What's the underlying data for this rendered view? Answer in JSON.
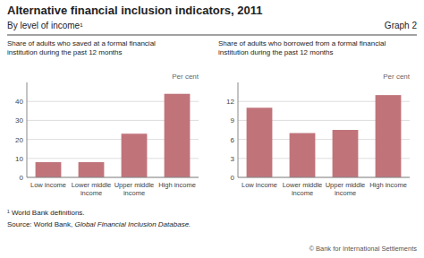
{
  "title": "Alternative financial inclusion indicators, 2011",
  "subtitle": "By level of income¹",
  "graph_label": "Graph 2",
  "footnote": "¹ World Bank definitions.",
  "source": "Source: World Bank, ",
  "source_italic": "Global Financial Inclusion Database.",
  "copyright": "© Bank for International Settlements",
  "chart_data": [
    {
      "type": "bar",
      "title": "Share of adults who saved at a formal financial\ninstitution during the past 12 months",
      "ylabel": "Per cent",
      "categories": [
        "Low income",
        "Lower middle\nincome",
        "Upper middle\nincome",
        "High income"
      ],
      "values": [
        8,
        8,
        23,
        44
      ],
      "color": "#c0747a",
      "ylim": [
        0,
        50
      ],
      "yticks": [
        0,
        10,
        20,
        30,
        40
      ],
      "grid": true
    },
    {
      "type": "bar",
      "title": "Share of adults who borrowed from a formal financial\ninstitution during the past 12 months",
      "ylabel": "Per cent",
      "categories": [
        "Low income",
        "Lower middle\nincome",
        "Upper middle\nincome",
        "High income"
      ],
      "values": [
        11,
        7,
        7.5,
        13
      ],
      "color": "#c0747a",
      "ylim": [
        0,
        15
      ],
      "yticks": [
        0,
        3,
        6,
        9,
        12
      ],
      "grid": true
    }
  ]
}
